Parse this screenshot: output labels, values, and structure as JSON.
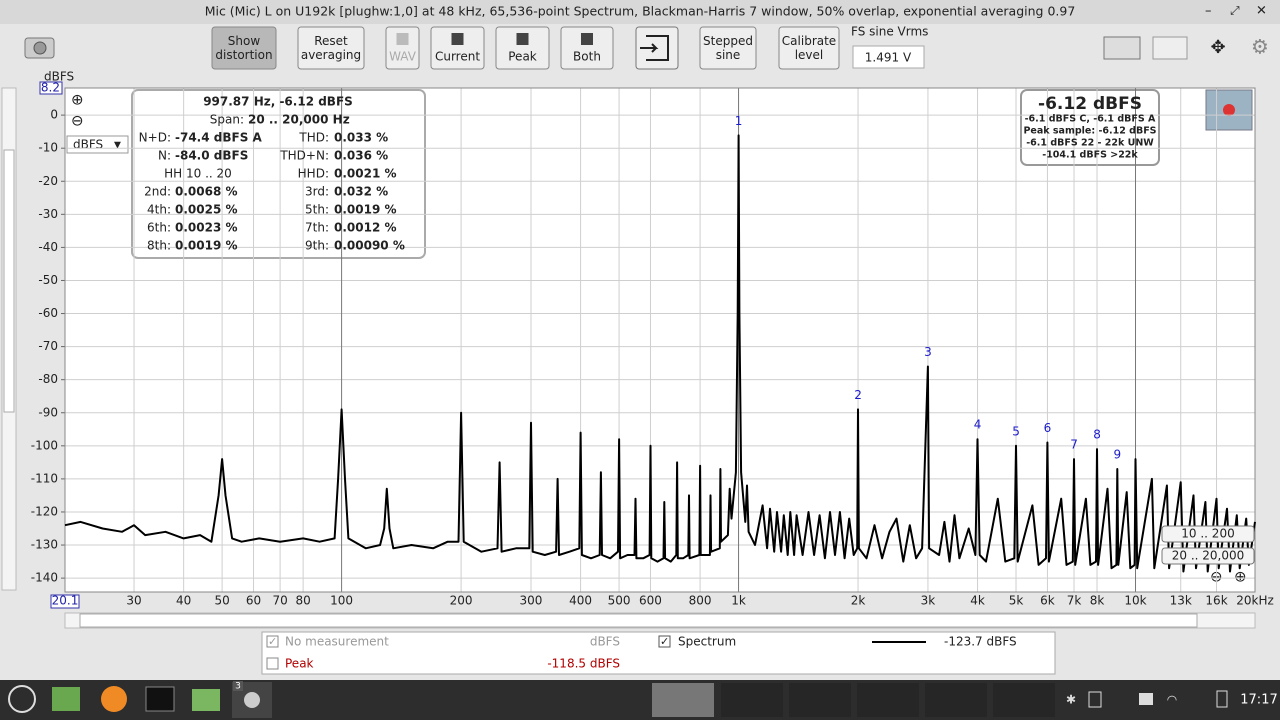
{
  "window": {
    "title": "Mic (Mic) L on U192k [plughw:1,0] at 48 kHz, 65,536-point Spectrum, Blackman-Harris 7 window, 50% overlap, exponential averaging 0.97"
  },
  "toolbar": {
    "buttons": [
      "Show distortion",
      "Reset averaging",
      "WAV",
      "Current",
      "Peak",
      "Both",
      "Stepped sine",
      "Calibrate level"
    ],
    "fs_label": "FS sine Vrms",
    "fs_value": "1.491 V"
  },
  "unit_selector": "dBFS",
  "chart_data": {
    "type": "line",
    "y_label": "dBFS",
    "log_x": true,
    "grid": true,
    "xlim": [
      20.1,
      20000
    ],
    "ylim": [
      -144.2,
      8.2
    ],
    "yticks": [
      0,
      -10,
      -20,
      -30,
      -40,
      -50,
      -60,
      -70,
      -80,
      -90,
      -100,
      -110,
      -120,
      -130,
      -140
    ],
    "xticks": [
      30,
      40,
      50,
      60,
      70,
      80,
      100,
      200,
      300,
      400,
      500,
      600,
      800,
      {
        "value": 1000,
        "label": "1k"
      },
      {
        "value": 2000,
        "label": "2k"
      },
      {
        "value": 3000,
        "label": "3k"
      },
      {
        "value": 4000,
        "label": "4k"
      },
      {
        "value": 5000,
        "label": "5k"
      },
      {
        "value": 6000,
        "label": "6k"
      },
      {
        "value": 7000,
        "label": "7k"
      },
      {
        "value": 8000,
        "label": "8k"
      },
      {
        "value": 10000,
        "label": "10k"
      },
      {
        "value": 13000,
        "label": "13k"
      },
      {
        "value": 16000,
        "label": "16k"
      },
      {
        "value": 20000,
        "label": "20kHz"
      }
    ],
    "x": [
      20.1,
      22,
      25,
      28,
      30,
      32,
      36,
      40,
      44,
      47,
      49,
      50,
      51,
      53,
      56,
      62,
      70,
      80,
      88,
      96,
      98,
      100,
      102,
      104,
      115,
      125,
      128,
      130,
      132,
      135,
      150,
      170,
      185,
      197,
      200,
      203,
      225,
      247,
      250,
      253,
      275,
      297,
      300,
      303,
      325,
      347,
      350,
      353,
      375,
      397,
      400,
      403,
      425,
      447,
      450,
      453,
      475,
      497,
      500,
      503,
      525,
      547,
      550,
      553,
      575,
      597,
      600,
      603,
      625,
      647,
      650,
      653,
      675,
      697,
      700,
      703,
      725,
      747,
      750,
      753,
      797,
      800,
      803,
      847,
      850,
      853,
      897,
      900,
      903,
      940,
      950,
      960,
      985,
      995,
      1000,
      1005,
      1015,
      1040,
      1050,
      1060,
      1100,
      1150,
      1180,
      1200,
      1230,
      1250,
      1280,
      1300,
      1330,
      1350,
      1380,
      1400,
      1450,
      1500,
      1550,
      1600,
      1650,
      1700,
      1750,
      1800,
      1850,
      1900,
      1950,
      1990,
      2000,
      2010,
      2100,
      2200,
      2300,
      2400,
      2500,
      2600,
      2700,
      2800,
      2900,
      3000,
      3020,
      3200,
      3300,
      3400,
      3500,
      3600,
      3800,
      3950,
      4000,
      4050,
      4200,
      4500,
      4700,
      4950,
      5000,
      5050,
      5500,
      5700,
      5950,
      6000,
      6050,
      6500,
      6700,
      6950,
      7000,
      7050,
      7500,
      7700,
      7950,
      8000,
      8050,
      8500,
      8700,
      8950,
      9000,
      9050,
      9500,
      9700,
      9950,
      10000,
      10100,
      11000,
      11150,
      12000,
      12150,
      13000,
      13200,
      14000,
      14200,
      15000,
      15200,
      16000,
      16200,
      17000,
      17300,
      18000,
      18300,
      19000,
      19300,
      20000
    ],
    "series": [
      {
        "name": "Spectrum",
        "color": "#000000",
        "values": [
          -124,
          -123,
          -125,
          -126,
          -124,
          -127,
          -126,
          -128,
          -127,
          -129,
          -115,
          -104,
          -115,
          -128,
          -129,
          -128,
          -129,
          -128,
          -129,
          -128,
          -110,
          -89,
          -110,
          -128,
          -131,
          -130,
          -125,
          -113,
          -125,
          -131,
          -130,
          -131,
          -129,
          -129,
          -90,
          -129,
          -132,
          -131,
          -105,
          -132,
          -131,
          -131,
          -93,
          -132,
          -133,
          -132,
          -110,
          -133,
          -132,
          -131,
          -96,
          -133,
          -134,
          -133,
          -108,
          -133,
          -134,
          -132,
          -98,
          -134,
          -133,
          -133,
          -116,
          -134,
          -134,
          -133,
          -100,
          -134,
          -135,
          -134,
          -117,
          -134,
          -135,
          -133,
          -105,
          -134,
          -134,
          -133,
          -115,
          -134,
          -133,
          -106,
          -133,
          -133,
          -115,
          -132,
          -131,
          -107,
          -129,
          -127,
          -113,
          -122,
          -108,
          -60,
          -6.12,
          -60,
          -108,
          -123,
          -112,
          -126,
          -130,
          -118,
          -131,
          -119,
          -132,
          -120,
          -132,
          -121,
          -133,
          -120,
          -133,
          -121,
          -133,
          -120,
          -133,
          -121,
          -134,
          -120,
          -133,
          -120,
          -134,
          -122,
          -133,
          -131,
          -89,
          -131,
          -134,
          -124,
          -134,
          -126,
          -122,
          -135,
          -124,
          -134,
          -131,
          -76,
          -131,
          -133,
          -123,
          -135,
          -121,
          -134,
          -125,
          -133,
          -98,
          -133,
          -135,
          -116,
          -135,
          -134,
          -100,
          -135,
          -118,
          -136,
          -134,
          -99,
          -135,
          -116,
          -136,
          -135,
          -104,
          -136,
          -116,
          -136,
          -135,
          -101,
          -136,
          -113,
          -137,
          -136,
          -107,
          -136,
          -114,
          -137,
          -136,
          -104,
          -137,
          -110,
          -137,
          -112,
          -137,
          -111,
          -138,
          -115,
          -137,
          -117,
          -138,
          -116,
          -137,
          -119,
          -138,
          -121,
          -137,
          -122,
          -136,
          -123
        ]
      }
    ],
    "harmonics": [
      {
        "label": "1",
        "freq": 1000,
        "level": -6.12
      },
      {
        "label": "2",
        "freq": 2000,
        "level": -89
      },
      {
        "label": "3",
        "freq": 3000,
        "level": -76
      },
      {
        "label": "4",
        "freq": 4000,
        "level": -98
      },
      {
        "label": "5",
        "freq": 5000,
        "level": -100
      },
      {
        "label": "6",
        "freq": 6000,
        "level": -99
      },
      {
        "label": "7",
        "freq": 7000,
        "level": -104
      },
      {
        "label": "8",
        "freq": 8000,
        "level": -101
      },
      {
        "label": "9",
        "freq": 9000,
        "level": -107
      }
    ]
  },
  "stats": {
    "header": "997.87 Hz, -6.12 dBFS",
    "span_label": "Span:",
    "span": "20 .. 20,000 Hz",
    "rows": [
      {
        "left_label": "N+D:",
        "left_value": "-74.4 dBFS A",
        "right_label": "THD:",
        "right_value": "0.033 %"
      },
      {
        "left_label": "N:",
        "left_value": "-84.0 dBFS",
        "right_label": "THD+N:",
        "right_value": "0.036 %"
      },
      {
        "left_label": "HH 10 .. 20",
        "right_label": "HHD:",
        "right_value": "0.0021 %"
      },
      {
        "left_label": "2nd:",
        "left_value": "0.0068 %",
        "right_label": "3rd:",
        "right_value": "0.032 %"
      },
      {
        "left_label": "4th:",
        "left_value": "0.0025 %",
        "right_label": "5th:",
        "right_value": "0.0019 %"
      },
      {
        "left_label": "6th:",
        "left_value": "0.0023 %",
        "right_label": "7th:",
        "right_value": "0.0012 %"
      },
      {
        "left_label": "8th:",
        "left_value": "0.0019 %",
        "right_label": "9th:",
        "right_value": "0.00090 %"
      }
    ]
  },
  "level_box": {
    "main": "-6.12 dBFS",
    "lines": [
      "-6.1 dBFS C, -6.1 dBFS A",
      "Peak sample: -6.12 dBFS",
      "-6.1 dBFS 22 - 22k UNW",
      "-104.1 dBFS >22k"
    ]
  },
  "ranges": [
    "10 .. 200",
    "20 .. 20,000"
  ],
  "legend": {
    "rows": [
      {
        "name": "No measurement",
        "value": "dBFS",
        "checked": true,
        "name2": "Spectrum",
        "value2": "-123.7 dBFS"
      },
      {
        "name": "Peak",
        "value": "-118.5 dBFS",
        "checked": false
      }
    ]
  },
  "taskbar": {
    "badge": "3",
    "clock": "17:17"
  }
}
